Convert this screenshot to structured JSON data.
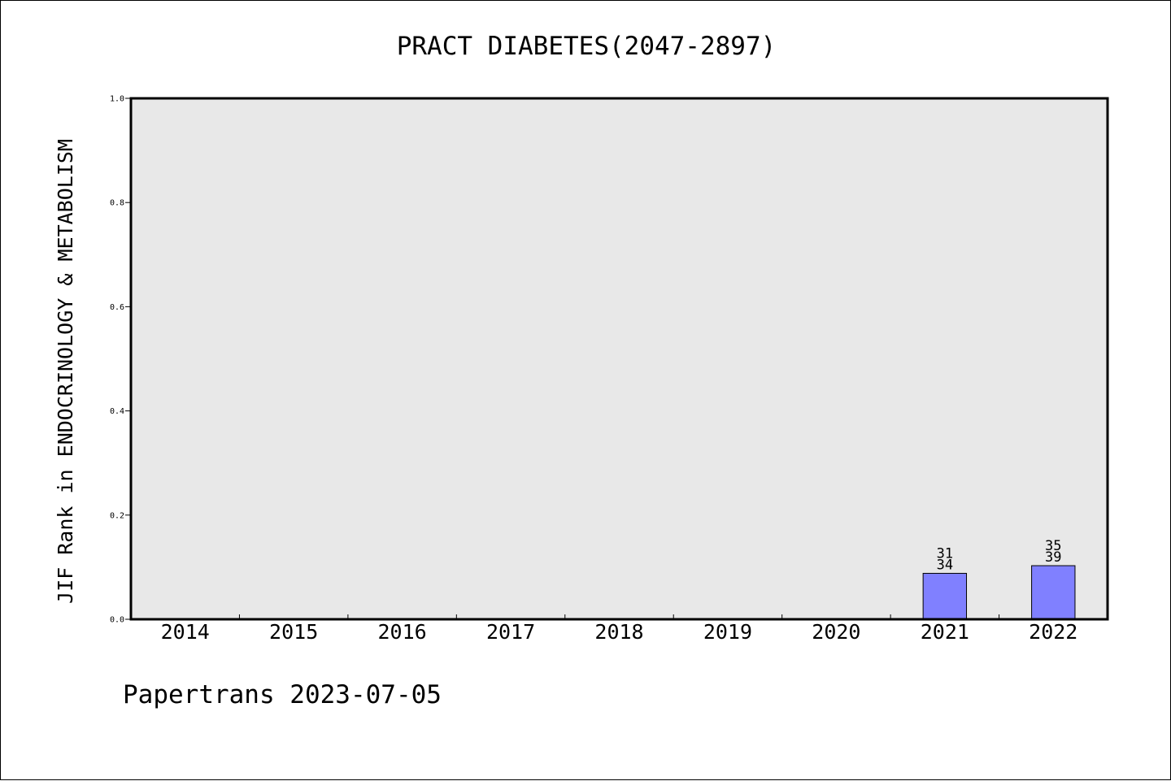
{
  "chart_data": {
    "type": "bar",
    "title": "PRACT DIABETES(2047-2897)",
    "xlabel": "",
    "ylabel": "JIF Rank in ENDOCRINOLOGY & METABOLISM",
    "categories": [
      "2014",
      "2015",
      "2016",
      "2017",
      "2018",
      "2019",
      "2020",
      "2021",
      "2022"
    ],
    "values": [
      null,
      null,
      null,
      null,
      null,
      null,
      null,
      0.0882,
      0.1029
    ],
    "rank_labels": [
      [
        "",
        ""
      ],
      [
        "",
        ""
      ],
      [
        "",
        ""
      ],
      [
        "",
        ""
      ],
      [
        "",
        ""
      ],
      [
        "",
        ""
      ],
      [
        "",
        ""
      ],
      [
        "31",
        "34"
      ],
      [
        "35",
        "39"
      ]
    ],
    "ylim": [
      0,
      1.0
    ],
    "yticks": [
      "0.0",
      "0.2",
      "0.4",
      "0.6",
      "0.8",
      "1.0"
    ],
    "grid": false,
    "colors": {
      "bar": "#8080ff",
      "plot_bg": "#e8e8e8",
      "page_bg": "#ffffff"
    }
  },
  "footer": {
    "text": "Papertrans 2023-07-05"
  }
}
